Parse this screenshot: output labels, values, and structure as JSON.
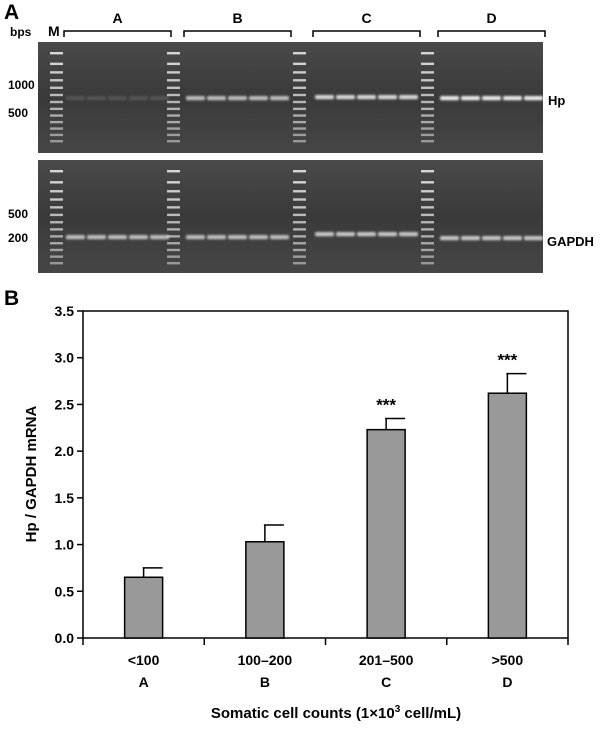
{
  "panel_a": {
    "panel_label": "A",
    "bps_label": "bps",
    "marker_label": "M",
    "group_labels": [
      "A",
      "B",
      "C",
      "D"
    ],
    "top_gel": {
      "size_labels": [
        "1000",
        "500"
      ],
      "band_label": "Hp",
      "band_intensity": [
        0.15,
        0.75,
        0.9,
        1.0
      ]
    },
    "bottom_gel": {
      "size_labels": [
        "500",
        "200"
      ],
      "band_label": "GAPDH",
      "band_intensity": [
        0.75,
        0.75,
        0.8,
        0.8
      ]
    },
    "colors": {
      "gel_background": "#3a3a3a",
      "band": "#e8e8e8"
    }
  },
  "panel_b": {
    "panel_label": "B",
    "chart_data": {
      "type": "bar",
      "categories": [
        "<100",
        "100–200",
        "201–500",
        ">500"
      ],
      "category_groups": [
        "A",
        "B",
        "C",
        "D"
      ],
      "values": [
        0.65,
        1.03,
        2.23,
        2.62
      ],
      "errors": [
        0.1,
        0.18,
        0.12,
        0.21
      ],
      "significance": [
        "",
        "",
        "***",
        "***"
      ],
      "ylabel": "Hp / GAPDH mRNA",
      "xlabel_prefix": "Somatic cell counts (1×10",
      "xlabel_sup": "3",
      "xlabel_suffix": " cell/mL)",
      "ylim": [
        0,
        3.5
      ],
      "yticks": [
        "0.0",
        "0.5",
        "1.0",
        "1.5",
        "2.0",
        "2.5",
        "3.0",
        "3.5"
      ],
      "grid": false,
      "bar_color": "#999999"
    }
  }
}
